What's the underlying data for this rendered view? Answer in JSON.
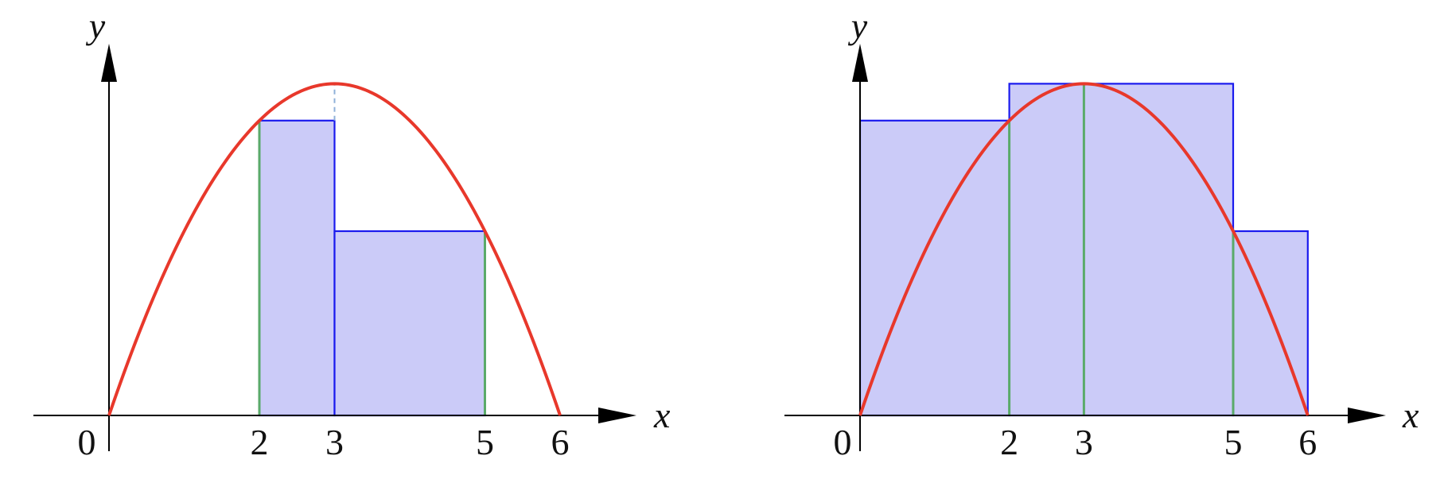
{
  "figure": {
    "panels": [
      {
        "id": "left",
        "x_axis_label": "x",
        "y_axis_label": "y",
        "tick_labels": [
          "0",
          "2",
          "3",
          "5",
          "6"
        ],
        "tick_values": [
          0,
          2,
          3,
          5,
          6
        ],
        "curve": {
          "type": "parabola",
          "expression": "y = x(6 - x)",
          "domain": [
            0,
            6
          ]
        },
        "rectangles": [
          {
            "x_from": 2,
            "x_to": 3,
            "height": 8
          },
          {
            "x_from": 3,
            "x_to": 5,
            "height": 5
          }
        ],
        "sample_lines_x": [
          2,
          5
        ],
        "dashed_lines_x": [
          3
        ]
      },
      {
        "id": "right",
        "x_axis_label": "x",
        "y_axis_label": "y",
        "tick_labels": [
          "0",
          "2",
          "3",
          "5",
          "6"
        ],
        "tick_values": [
          0,
          2,
          3,
          5,
          6
        ],
        "curve": {
          "type": "parabola",
          "expression": "y = x(6 - x)",
          "domain": [
            0,
            6
          ]
        },
        "rectangles": [
          {
            "x_from": 0,
            "x_to": 2,
            "height": 8
          },
          {
            "x_from": 2,
            "x_to": 5,
            "height": 9
          },
          {
            "x_from": 5,
            "x_to": 6,
            "height": 5
          }
        ],
        "sample_lines_x": [
          2,
          3,
          5
        ],
        "dashed_lines_x": []
      }
    ],
    "colors": {
      "curve": "#e8382b",
      "rect_fill": "#cbcbf8",
      "rect_stroke": "#1a1aee",
      "sample_line": "#5aaa6a",
      "dashed_line": "#8fb0d8",
      "axis": "#000000"
    }
  }
}
